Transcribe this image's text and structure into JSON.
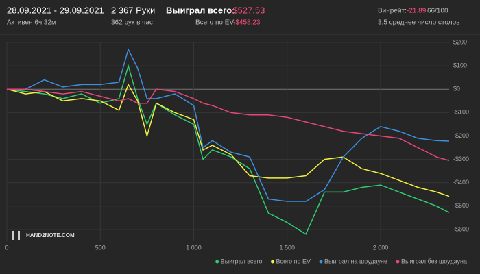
{
  "header": {
    "dates": "28.09.2021 - 29.09.2021",
    "active": "Активен 6ч 32м",
    "hands": "2 367 Руки",
    "rate": "362 рук в час",
    "won_label": "Выиграл всего:",
    "won_value": "-$527.53",
    "ev_label": "Всего по EV:",
    "ev_value": "-$458.23",
    "winrate_label": "Винрейт:",
    "winrate_value": "-21.89",
    "winrate_unit": "66/100",
    "tables": "3.5 среднее число столов",
    "watermark": "HAND2NOTE.COM"
  },
  "chart_data": {
    "type": "line",
    "x": [
      0,
      100,
      200,
      300,
      400,
      500,
      600,
      650,
      700,
      750,
      800,
      900,
      1000,
      1050,
      1100,
      1200,
      1300,
      1400,
      1500,
      1600,
      1700,
      1800,
      1900,
      2000,
      2100,
      2200,
      2300,
      2367
    ],
    "series": [
      {
        "name": "Выиграл всего",
        "color": "#2ecc71",
        "values": [
          0,
          -10,
          -20,
          -40,
          -20,
          -60,
          -40,
          100,
          -40,
          -150,
          -60,
          -110,
          -150,
          -300,
          -260,
          -290,
          -340,
          -530,
          -570,
          -620,
          -440,
          -440,
          -420,
          -410,
          -440,
          -470,
          -500,
          -527.53
        ]
      },
      {
        "name": "Всего по EV",
        "color": "#f5f03c",
        "values": [
          0,
          -20,
          -10,
          -50,
          -40,
          -50,
          -90,
          20,
          -50,
          -200,
          -60,
          -100,
          -130,
          -260,
          -240,
          -280,
          -370,
          -380,
          -380,
          -370,
          -300,
          -290,
          -340,
          -360,
          -390,
          -420,
          -440,
          -458.23
        ]
      },
      {
        "name": "Выиграл на шоудауне",
        "color": "#3d8fe0",
        "values": [
          0,
          0,
          40,
          10,
          20,
          20,
          30,
          170,
          90,
          -40,
          -40,
          -20,
          -70,
          -250,
          -220,
          -270,
          -290,
          -470,
          -480,
          -480,
          -430,
          -290,
          -210,
          -160,
          -180,
          -210,
          -220,
          -222
        ]
      },
      {
        "name": "Выиграл без шоудауна",
        "color": "#e8457a",
        "values": [
          0,
          0,
          -10,
          -20,
          -10,
          -30,
          -50,
          -40,
          -60,
          -60,
          0,
          -10,
          -40,
          -60,
          -70,
          -100,
          -110,
          -110,
          -120,
          -140,
          -160,
          -180,
          -190,
          -200,
          -210,
          -250,
          -290,
          -305
        ]
      }
    ],
    "xlim": [
      0,
      2367
    ],
    "xticks": [
      0,
      500,
      {
        "value": 1000,
        "label": "1 000"
      },
      {
        "value": 1500,
        "label": "1 500"
      },
      {
        "value": 2000,
        "label": "2 000"
      }
    ],
    "ylim": [
      -650,
      200
    ],
    "yticks": [
      {
        "value": 200,
        "label": "$200"
      },
      {
        "value": 100,
        "label": "$100"
      },
      {
        "value": 0,
        "label": "$0"
      },
      {
        "value": -100,
        "label": "-$100"
      },
      {
        "value": -200,
        "label": "-$200"
      },
      {
        "value": -300,
        "label": "-$300"
      },
      {
        "value": -400,
        "label": "-$400"
      },
      {
        "value": -500,
        "label": "-$500"
      },
      {
        "value": -600,
        "label": "-$600"
      }
    ],
    "grid": true,
    "legend": "bottom-right"
  }
}
